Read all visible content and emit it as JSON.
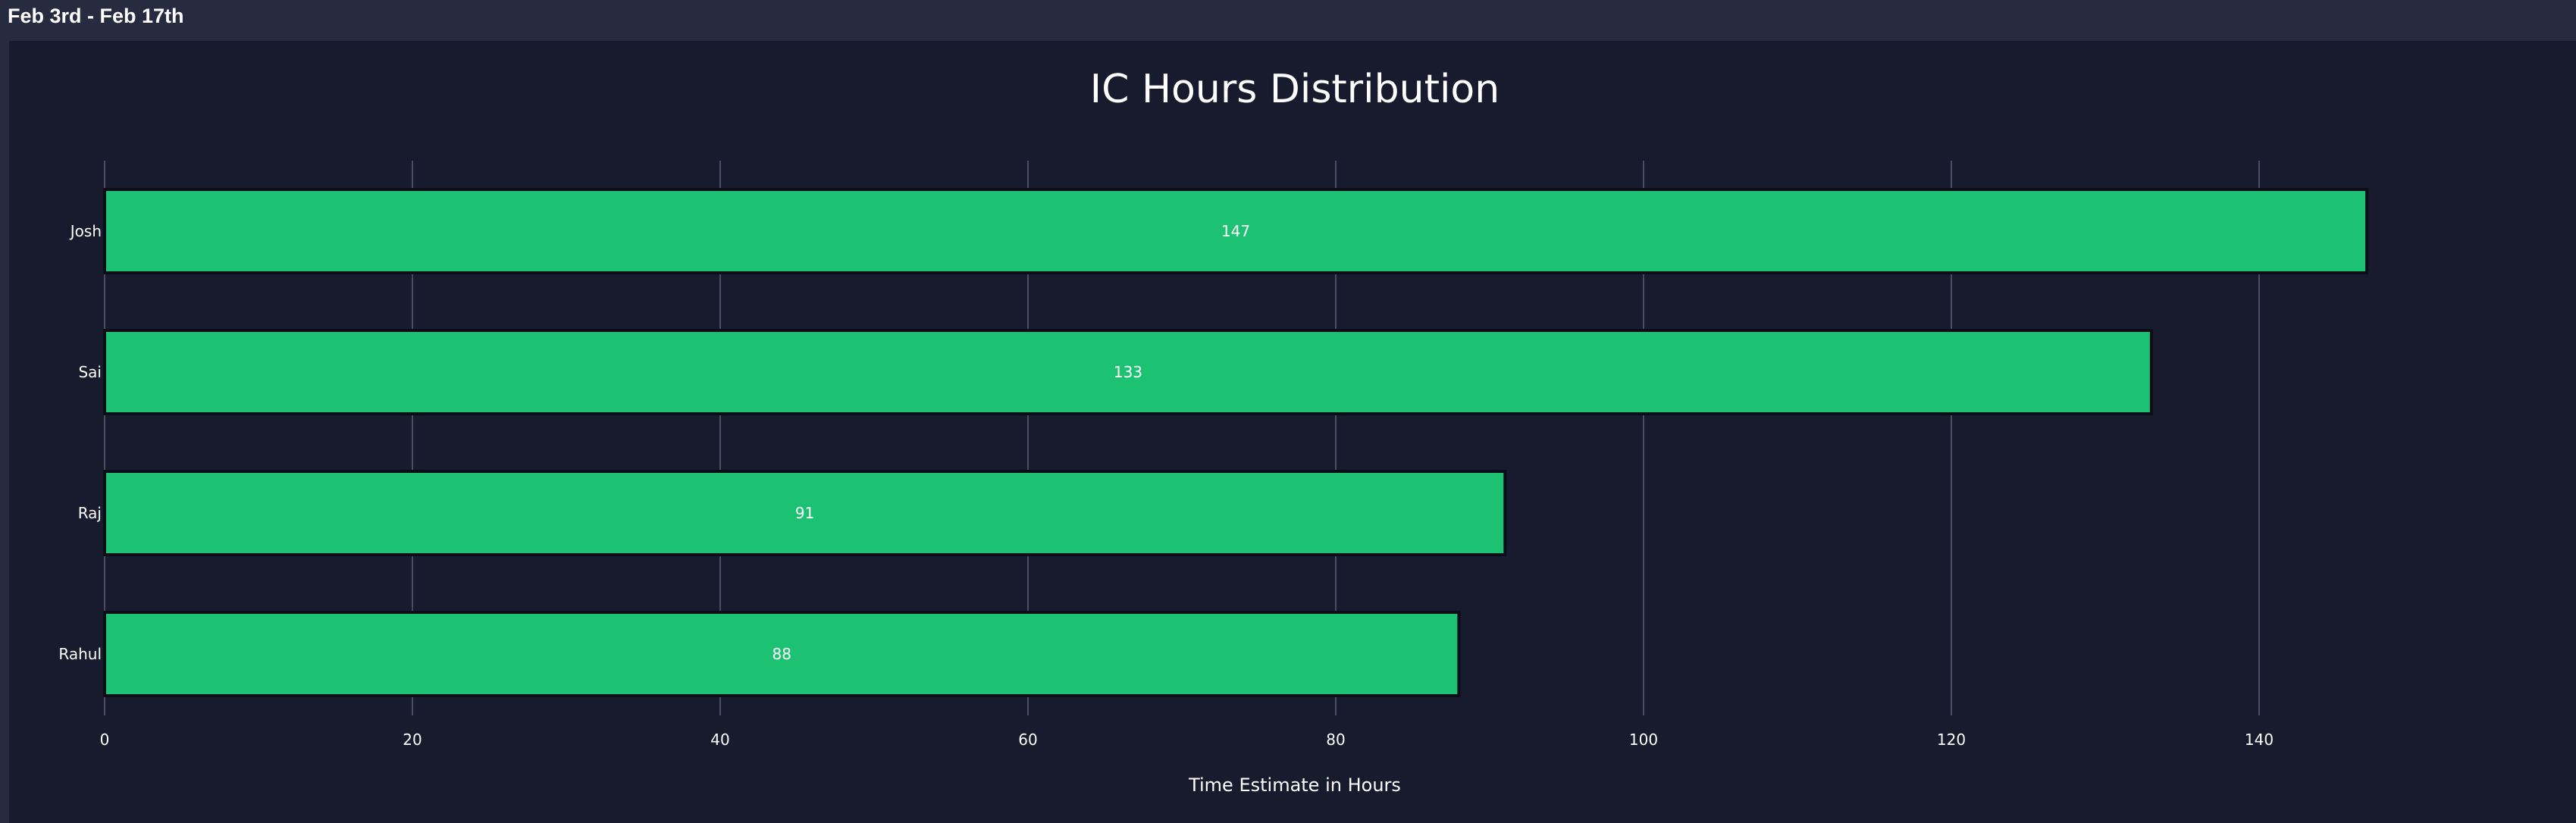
{
  "header": {
    "title": "Feb 3rd - Feb 17th"
  },
  "colors": {
    "panel_bg": "#181a2e",
    "bar_fill": "#1cc172",
    "bar_stroke": "#0b0d18",
    "grid": "#4a4d62",
    "text": "#ffffff"
  },
  "chart_data": {
    "type": "bar",
    "orientation": "horizontal",
    "title": "IC Hours Distribution",
    "xlabel": "Time Estimate in Hours",
    "ylabel": "",
    "categories": [
      "Josh",
      "Sai",
      "Raj",
      "Rahul"
    ],
    "values": [
      147,
      133,
      91,
      88
    ],
    "data_labels": [
      "147",
      "133",
      "91",
      "88"
    ],
    "xlim": [
      0,
      160
    ],
    "xticks": [
      0,
      20,
      40,
      60,
      80,
      100,
      120,
      140
    ],
    "xtick_labels": [
      "0",
      "20",
      "40",
      "60",
      "80",
      "100",
      "120",
      "140"
    ],
    "grid": "vertical",
    "legend": "none"
  }
}
